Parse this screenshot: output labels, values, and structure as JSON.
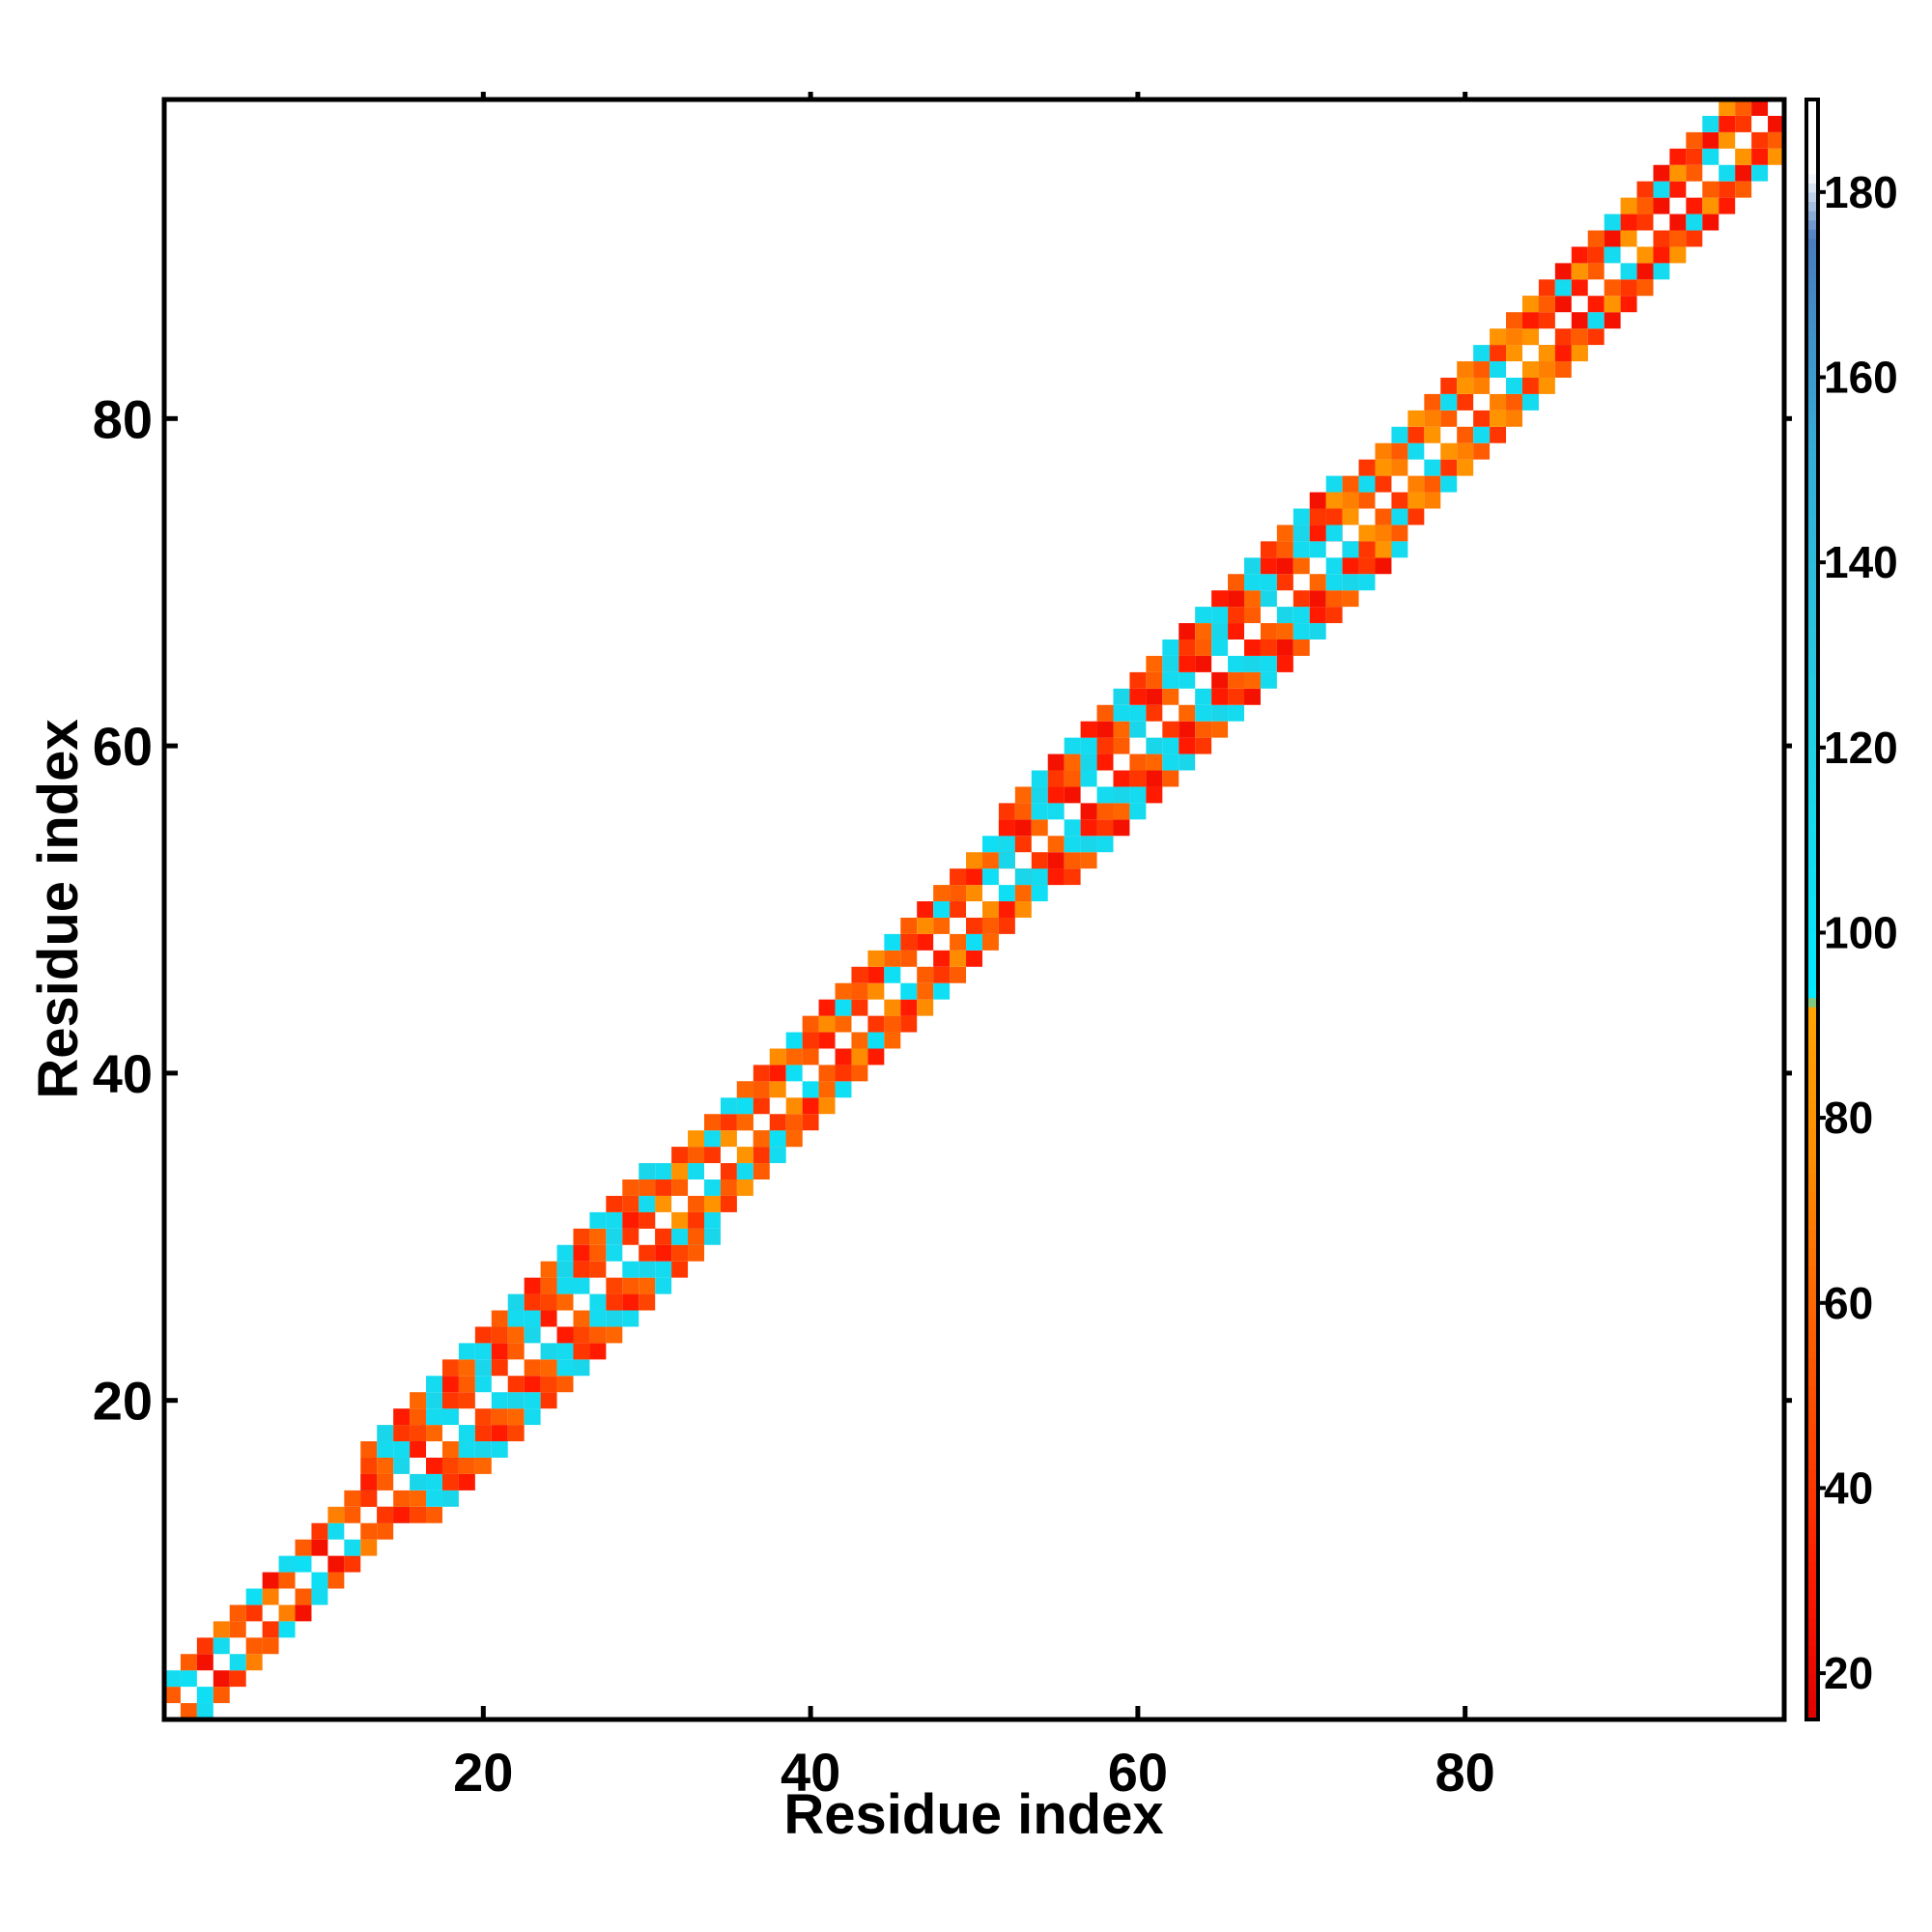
{
  "chart_data": {
    "type": "heatmap",
    "title": "",
    "xlabel": "Residue index",
    "ylabel": "Residue index",
    "xlim": [
      0.5,
      99.5
    ],
    "ylim": [
      0.5,
      99.5
    ],
    "xticks": [
      20,
      40,
      60,
      80
    ],
    "yticks": [
      20,
      40,
      60,
      80
    ],
    "colorbar": {
      "range": [
        15,
        190
      ],
      "ticks": [
        20,
        40,
        60,
        80,
        100,
        120,
        140,
        160,
        180
      ],
      "stops": [
        {
          "value": 15,
          "color": "#e00000"
        },
        {
          "value": 30,
          "color": "#ff1a00"
        },
        {
          "value": 45,
          "color": "#ff4400"
        },
        {
          "value": 60,
          "color": "#ff6600"
        },
        {
          "value": 75,
          "color": "#ff8c00"
        },
        {
          "value": 92,
          "color": "#ffa500"
        },
        {
          "value": 93,
          "color": "#00eaff"
        },
        {
          "value": 120,
          "color": "#20d2e6"
        },
        {
          "value": 150,
          "color": "#33b0d8"
        },
        {
          "value": 175,
          "color": "#4a7cc0"
        },
        {
          "value": 182,
          "color": "#ffffff"
        },
        {
          "value": 190,
          "color": "#ffffff"
        }
      ]
    },
    "bands": [
      {
        "from": 1,
        "to": 13,
        "width": 2,
        "levels": [
          110,
          55,
          40,
          70,
          55,
          105,
          25
        ]
      },
      {
        "from": 13,
        "to": 30,
        "width": 4,
        "levels": [
          110,
          40,
          55,
          115,
          30,
          60,
          110,
          45
        ]
      },
      {
        "from": 30,
        "to": 36,
        "width": 3,
        "levels": [
          80,
          55,
          110,
          40
        ]
      },
      {
        "from": 36,
        "to": 52,
        "width": 3,
        "levels": [
          60,
          40,
          75,
          105,
          55,
          30
        ]
      },
      {
        "from": 52,
        "to": 72,
        "width": 4,
        "levels": [
          110,
          30,
          55,
          115,
          40,
          60,
          110,
          25
        ]
      },
      {
        "from": 72,
        "to": 84,
        "width": 3,
        "levels": [
          110,
          80,
          55,
          40,
          70
        ]
      },
      {
        "from": 84,
        "to": 99,
        "width": 3,
        "levels": [
          30,
          55,
          110,
          80,
          40,
          25
        ]
      }
    ]
  }
}
